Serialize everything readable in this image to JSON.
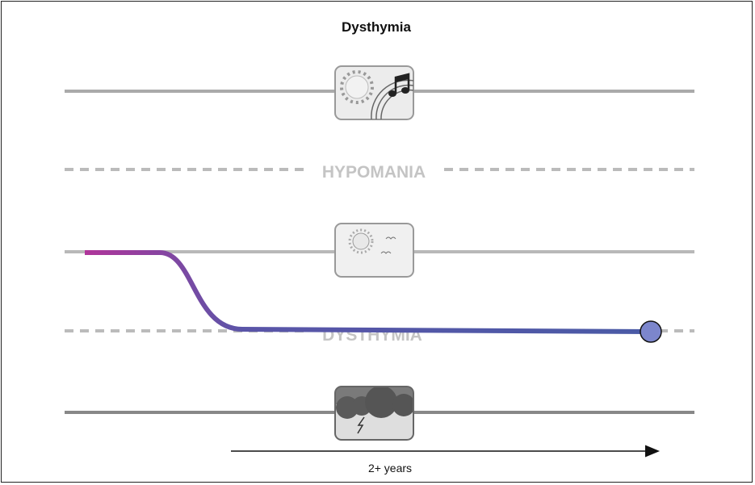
{
  "title": "Dysthymia",
  "levels": {
    "hypomania_label": "HYPOMANIA",
    "dysthymia_label": "DYSTHYMIA"
  },
  "icons": {
    "top": "sun-and-music-icon",
    "middle": "sun-and-birds-icon",
    "bottom": "storm-cloud-icon"
  },
  "time_label": "2+ years",
  "colors": {
    "mood_line_start": "#b0359a",
    "mood_line_end": "#4a5aa6",
    "end_marker": "#7c86cc"
  }
}
